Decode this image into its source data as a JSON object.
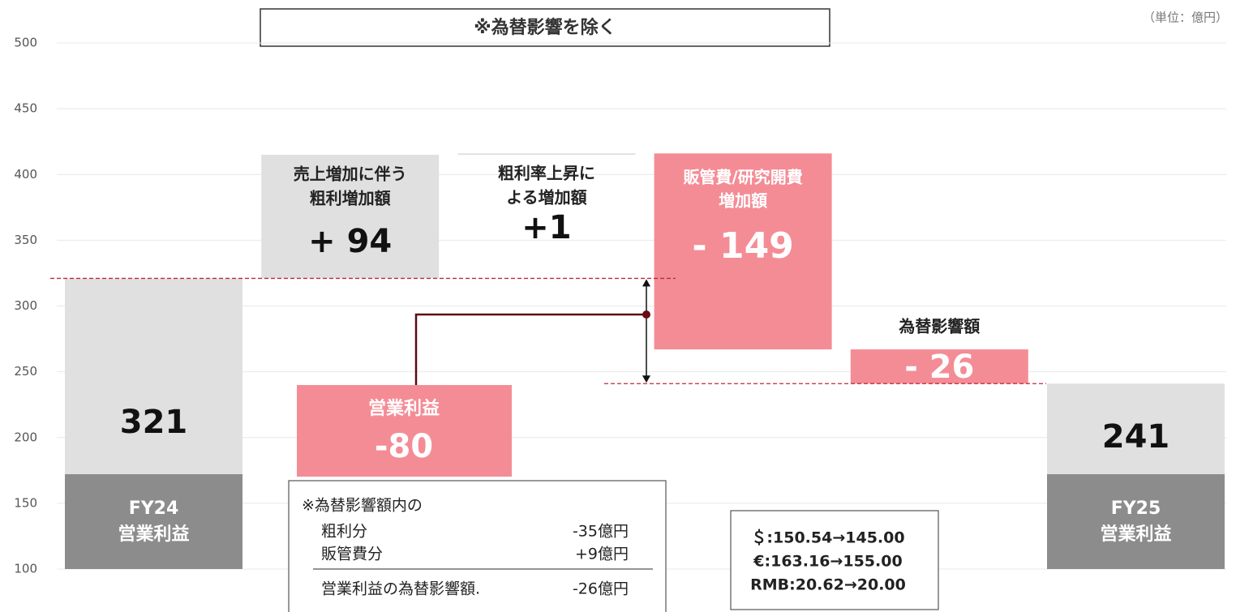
{
  "chart_data": {
    "type": "waterfall",
    "title": "※為替影響を除く",
    "unit": "（単位：億円）",
    "ylim": [
      100,
      500
    ],
    "yticks": [
      100,
      150,
      200,
      250,
      300,
      350,
      400,
      450,
      500
    ],
    "grid": true,
    "start": {
      "label": [
        "FY24",
        "営業利益"
      ],
      "value": 321,
      "value_label": "321",
      "color": "#e0e0e0",
      "label_color": "#8c8c8c"
    },
    "steps": [
      {
        "label": [
          "売上増加に伴う",
          "粗利増加額"
        ],
        "value": 94,
        "value_label": "+ 94",
        "color": "#e0e0e0"
      },
      {
        "label": [
          "粗利率上昇に",
          "よる増加額"
        ],
        "value": 1,
        "value_label": "+1",
        "color": "#dcdcdc"
      },
      {
        "label": [
          "販管費/研究開費",
          "増加額"
        ],
        "value": -149,
        "value_label": "- 149",
        "color": "#f48c96"
      },
      {
        "label": [
          "為替影響額"
        ],
        "value": -26,
        "value_label": "- 26",
        "color": "#f48c96"
      }
    ],
    "end": {
      "label": [
        "FY25",
        "営業利益"
      ],
      "value": 241,
      "value_label": "241",
      "color": "#e0e0e0",
      "label_color": "#8c8c8c"
    },
    "change": {
      "label": "営業利益",
      "value": -80,
      "value_label": "-80",
      "color": "#f48c96"
    },
    "fx_note": {
      "title": "※為替影響額内の",
      "rows": [
        [
          "粗利分",
          "-35億円"
        ],
        [
          "販管費分",
          "+9億円"
        ]
      ],
      "total": [
        "営業利益の為替影響額.",
        "-26億円"
      ]
    },
    "rates": [
      "＄:150.54→145.00",
      "€:163.16→155.00",
      "RMB:20.62→20.00"
    ]
  }
}
